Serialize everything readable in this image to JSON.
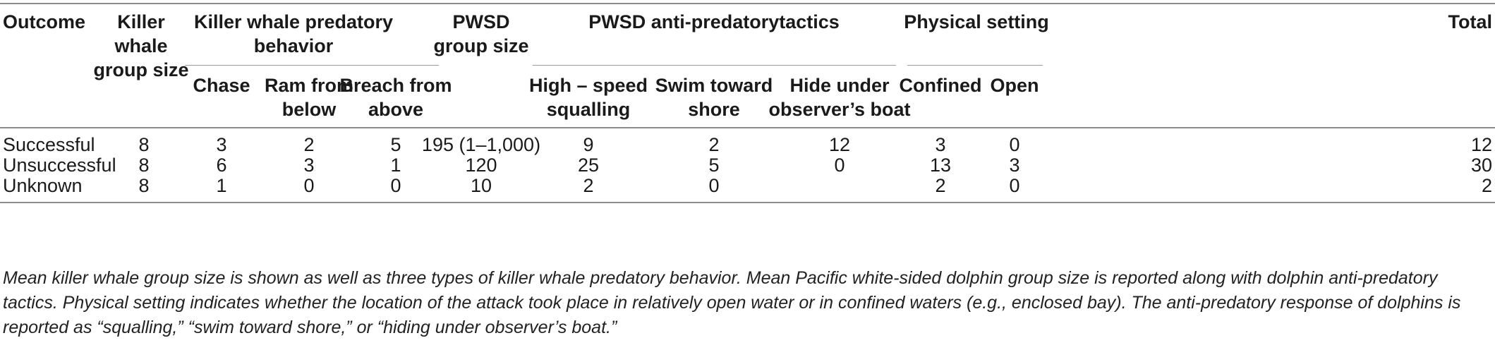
{
  "table": {
    "headers": {
      "outcome": "Outcome",
      "kw_group_size": [
        "Killer",
        "whale",
        "group size"
      ],
      "kw_behavior": [
        "Killer whale predatory",
        "behavior"
      ],
      "chase": "Chase",
      "ram": [
        "Ram from",
        "below"
      ],
      "breach": [
        "Breach from",
        "above"
      ],
      "pwsd_group_size": [
        "PWSD",
        "group size"
      ],
      "tactics": "PWSD anti-predatorytactics",
      "squalling": [
        "High – speed",
        "squalling"
      ],
      "swim": [
        "Swim toward",
        "shore"
      ],
      "hide": [
        "Hide under",
        "observer’s boat"
      ],
      "physical": "Physical setting",
      "confined": "Confined",
      "open": "Open",
      "total": "Total"
    },
    "rows": [
      [
        "Successful",
        "8",
        "3",
        "2",
        "5",
        "195 (1–1,000)",
        "9",
        "2",
        "12",
        "3",
        "0",
        "12"
      ],
      [
        "Unsuccessful",
        "8",
        "6",
        "3",
        "1",
        "120",
        "25",
        "5",
        "0",
        "13",
        "3",
        "30"
      ],
      [
        "Unknown",
        "8",
        "1",
        "0",
        "0",
        "10",
        "2",
        "0",
        "",
        "2",
        "0",
        "2"
      ]
    ]
  },
  "caption": "Mean killer whale group size is shown as well as three types of killer whale predatory behavior. Mean Pacific white-sided dolphin group size is reported along with dolphin anti-predatory tactics. Physical setting indicates whether the location of the attack took place in relatively open water or in confined waters (e.g., enclosed bay). The anti-predatory response of dolphins is reported as “squalling,” “swim toward shore,” or “hiding under observer’s boat.”"
}
